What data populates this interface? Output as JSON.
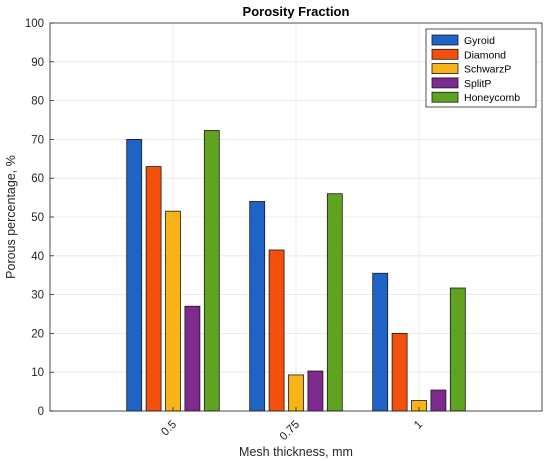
{
  "chart_data": {
    "type": "bar",
    "title": "Porosity Fraction",
    "xlabel": "Mesh thickness, mm",
    "ylabel": "Porous percentage, %",
    "categories": [
      "0.5",
      "0.75",
      "1"
    ],
    "ylim": [
      0,
      100
    ],
    "yticks": [
      0,
      10,
      20,
      30,
      40,
      50,
      60,
      70,
      80,
      90,
      100
    ],
    "grid": true,
    "legend_position": "top-right",
    "series": [
      {
        "name": "Gyroid",
        "color": "#1f63c6",
        "values": [
          70,
          54,
          35.5
        ]
      },
      {
        "name": "Diamond",
        "color": "#f2500c",
        "values": [
          63,
          41.5,
          20
        ]
      },
      {
        "name": "SchwarzP",
        "color": "#f7b317",
        "values": [
          51.5,
          9.3,
          2.7
        ]
      },
      {
        "name": "SplitP",
        "color": "#7e2a8e",
        "values": [
          27,
          10.3,
          5.4
        ]
      },
      {
        "name": "Honeycomb",
        "color": "#5fa321",
        "values": [
          72.3,
          56,
          31.7
        ]
      }
    ]
  }
}
